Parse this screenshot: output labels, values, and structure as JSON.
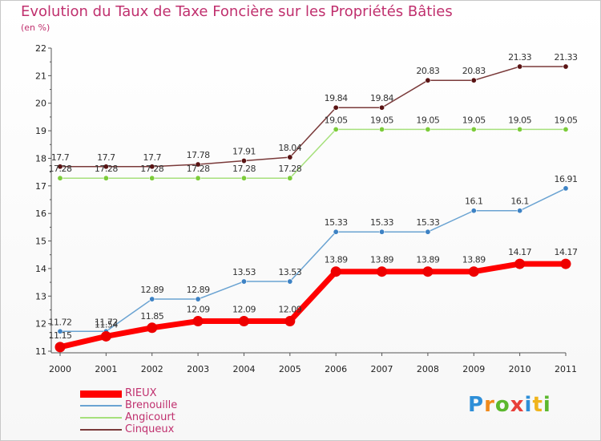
{
  "title": "Evolution du Taux de Taxe Foncière sur les Propriétés Bâties",
  "subtitle": "(en %)",
  "logo_text": "Proxiti",
  "chart_data": {
    "type": "line",
    "title": "Evolution du Taux de Taxe Foncière sur les Propriétés Bâties",
    "ylabel": "(en %)",
    "xlabel": "",
    "x": [
      "2000",
      "2001",
      "2002",
      "2003",
      "2004",
      "2005",
      "2006",
      "2007",
      "2008",
      "2009",
      "2010",
      "2011"
    ],
    "ylim": [
      11,
      22
    ],
    "yticks": [
      "11",
      "12",
      "13",
      "14",
      "15",
      "16",
      "17",
      "18",
      "19",
      "20",
      "21",
      "22"
    ],
    "grid": false,
    "legend_position": "bottom-left",
    "series": [
      {
        "name": "RIEUX",
        "color": "#ff0000",
        "marker": "#ee0000",
        "width": 7,
        "values": [
          11.15,
          11.54,
          11.85,
          12.09,
          12.09,
          12.09,
          13.89,
          13.89,
          13.89,
          13.89,
          14.17,
          14.17
        ],
        "labels": [
          "11.15",
          "11.54",
          "11.85",
          "12.09",
          "12.09",
          "12.09",
          "13.89",
          "13.89",
          "13.89",
          "13.89",
          "14.17",
          "14.17"
        ]
      },
      {
        "name": "Brenouille",
        "color": "#6aa3d2",
        "marker": "#3d82c4",
        "width": 1.5,
        "values": [
          11.72,
          11.72,
          12.89,
          12.89,
          13.53,
          13.53,
          15.33,
          15.33,
          15.33,
          16.1,
          16.1,
          16.91
        ],
        "labels": [
          "11.72",
          "11.72",
          "12.89",
          "12.89",
          "13.53",
          "13.53",
          "15.33",
          "15.33",
          "15.33",
          "16.1",
          "16.1",
          "16.91"
        ]
      },
      {
        "name": "Angicourt",
        "color": "#a6e07c",
        "marker": "#7ccc3a",
        "width": 1.5,
        "values": [
          17.28,
          17.28,
          17.28,
          17.28,
          17.28,
          17.28,
          19.05,
          19.05,
          19.05,
          19.05,
          19.05,
          19.05
        ],
        "labels": [
          "17.28",
          "17.28",
          "17.28",
          "17.28",
          "17.28",
          "17.28",
          "19.05",
          "19.05",
          "19.05",
          "19.05",
          "19.05",
          "19.05"
        ]
      },
      {
        "name": "Cinqueux",
        "color": "#7a3a3a",
        "marker": "#5a1414",
        "width": 1.5,
        "values": [
          17.7,
          17.7,
          17.7,
          17.78,
          17.91,
          18.04,
          19.84,
          19.84,
          20.83,
          20.83,
          21.33,
          21.33
        ],
        "labels": [
          "17.7",
          "17.7",
          "17.7",
          "17.78",
          "17.91",
          "18.04",
          "19.84",
          "19.84",
          "20.83",
          "20.83",
          "21.33",
          "21.33"
        ]
      }
    ]
  },
  "legend": {
    "items": [
      {
        "label": "RIEUX",
        "color": "#ff0000"
      },
      {
        "label": "Brenouille",
        "color": "#6aa3d2"
      },
      {
        "label": "Angicourt",
        "color": "#a6e07c"
      },
      {
        "label": "Cinqueux",
        "color": "#7a3a3a"
      }
    ]
  }
}
